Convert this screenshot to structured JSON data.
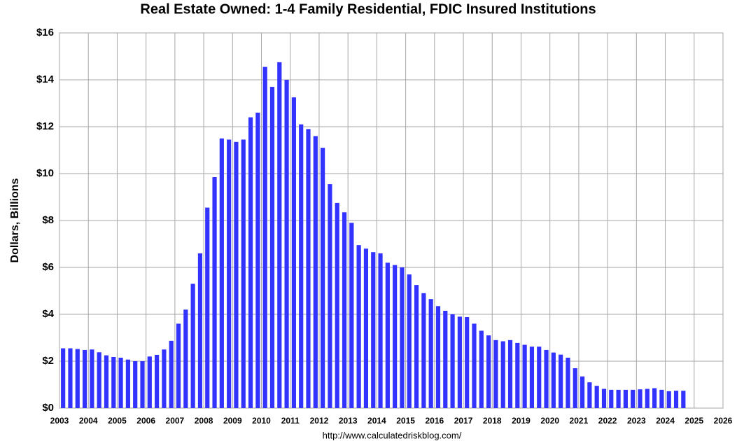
{
  "chart_data": {
    "type": "bar",
    "title": "Real Estate Owned: 1-4 Family Residential, FDIC Insured Institutions",
    "y_label": "Dollars, Billions",
    "source": "http://www.calculatedriskblog.com/",
    "color": "#3333ff",
    "grid": true,
    "x": [
      2003,
      2003.25,
      2003.5,
      2003.75,
      2004,
      2004.25,
      2004.5,
      2004.75,
      2005,
      2005.25,
      2005.5,
      2005.75,
      2006,
      2006.25,
      2006.5,
      2006.75,
      2007,
      2007.25,
      2007.5,
      2007.75,
      2008,
      2008.25,
      2008.5,
      2008.75,
      2009,
      2009.25,
      2009.5,
      2009.75,
      2010,
      2010.25,
      2010.5,
      2010.75,
      2011,
      2011.25,
      2011.5,
      2011.75,
      2012,
      2012.25,
      2012.5,
      2012.75,
      2013,
      2013.25,
      2013.5,
      2013.75,
      2014,
      2014.25,
      2014.5,
      2014.75,
      2015,
      2015.25,
      2015.5,
      2015.75,
      2016,
      2016.25,
      2016.5,
      2016.75,
      2017,
      2017.25,
      2017.5,
      2017.75,
      2018,
      2018.25,
      2018.5,
      2018.75,
      2019,
      2019.25,
      2019.5,
      2019.75,
      2020,
      2020.25,
      2020.5,
      2020.75,
      2021,
      2021.25,
      2021.5,
      2021.75,
      2022,
      2022.25,
      2022.5,
      2022.75,
      2023,
      2023.25,
      2023.5,
      2023.75,
      2024,
      2024.25,
      2024.5
    ],
    "values": [
      2.55,
      2.55,
      2.52,
      2.48,
      2.5,
      2.38,
      2.25,
      2.18,
      2.15,
      2.07,
      2.0,
      2.0,
      2.2,
      2.27,
      2.5,
      2.87,
      3.6,
      4.2,
      5.3,
      6.6,
      8.55,
      9.85,
      11.5,
      11.45,
      11.35,
      11.45,
      12.4,
      12.6,
      14.55,
      13.7,
      14.75,
      14.0,
      13.25,
      12.1,
      11.9,
      11.6,
      11.1,
      9.55,
      8.75,
      8.35,
      7.9,
      6.95,
      6.8,
      6.65,
      6.6,
      6.2,
      6.1,
      6.0,
      5.7,
      5.25,
      4.9,
      4.65,
      4.35,
      4.15,
      4.0,
      3.9,
      3.88,
      3.6,
      3.3,
      3.1,
      2.9,
      2.85,
      2.9,
      2.78,
      2.7,
      2.62,
      2.62,
      2.48,
      2.37,
      2.28,
      2.15,
      1.7,
      1.35,
      1.1,
      0.95,
      0.82,
      0.78,
      0.78,
      0.78,
      0.78,
      0.8,
      0.82,
      0.85,
      0.78,
      0.72,
      0.74,
      0.74
    ],
    "xlim": [
      2003,
      2026
    ],
    "xticks": [
      2003,
      2004,
      2005,
      2006,
      2007,
      2008,
      2009,
      2010,
      2011,
      2012,
      2013,
      2014,
      2015,
      2016,
      2017,
      2018,
      2019,
      2020,
      2021,
      2022,
      2023,
      2024,
      2025,
      2026
    ],
    "ylim": [
      0,
      16
    ],
    "yticks": [
      {
        "value": 0,
        "label": "$0"
      },
      {
        "value": 2,
        "label": "$2"
      },
      {
        "value": 4,
        "label": "$4"
      },
      {
        "value": 6,
        "label": "$6"
      },
      {
        "value": 8,
        "label": "$8"
      },
      {
        "value": 10,
        "label": "$10"
      },
      {
        "value": 12,
        "label": "$12"
      },
      {
        "value": 14,
        "label": "$14"
      },
      {
        "value": 16,
        "label": "$16"
      }
    ]
  }
}
